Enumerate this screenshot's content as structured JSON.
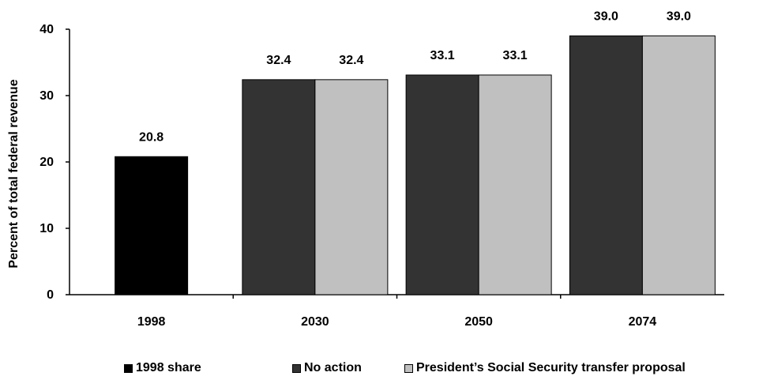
{
  "chart_data": {
    "type": "bar",
    "title": "",
    "xlabel": "",
    "ylabel": "Percent of total federal revenue",
    "ylim": [
      0,
      40
    ],
    "yticks": [
      0,
      10,
      20,
      30,
      40
    ],
    "categories": [
      "1998",
      "2030",
      "2050",
      "2074"
    ],
    "grid": false,
    "legend_position": "bottom",
    "series": [
      {
        "name": "1998 share",
        "color": "#000000",
        "values": [
          20.8,
          null,
          null,
          null
        ],
        "labels": [
          "20.8",
          "",
          "",
          ""
        ]
      },
      {
        "name": "No action",
        "color": "#333333",
        "values": [
          null,
          32.4,
          33.1,
          39.0
        ],
        "labels": [
          "",
          "32.4",
          "33.1",
          "39.0"
        ]
      },
      {
        "name": "President’s Social Security transfer proposal",
        "color": "#c0c0c0",
        "values": [
          null,
          32.4,
          33.1,
          39.0
        ],
        "labels": [
          "",
          "32.4",
          "33.1",
          "39.0"
        ]
      }
    ]
  }
}
